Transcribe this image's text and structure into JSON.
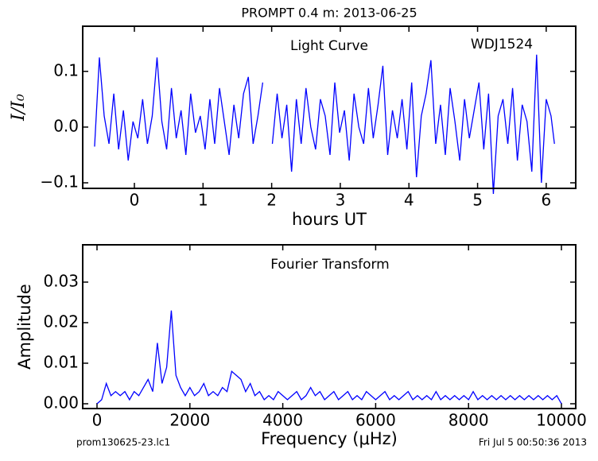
{
  "chart_data": [
    {
      "type": "line",
      "title": "PROMPT 0.4 m:  2013-06-25",
      "annotations": [
        "Light Curve",
        "WDJ1524"
      ],
      "xlabel": "hours UT",
      "ylabel": "I/I₀",
      "color": "#0000ff",
      "x": [
        -0.58,
        -0.51,
        -0.44,
        -0.37,
        -0.3,
        -0.23,
        -0.16,
        -0.09,
        -0.02,
        0.05,
        0.12,
        0.19,
        0.26,
        0.33,
        0.4,
        0.47,
        0.54,
        0.61,
        0.68,
        0.75,
        0.82,
        0.89,
        0.96,
        1.03,
        1.1,
        1.17,
        1.24,
        1.31,
        1.38,
        1.45,
        1.52,
        1.59,
        1.66,
        1.73,
        1.8,
        1.87,
        1.94,
        2.01,
        2.08,
        2.15,
        2.22,
        2.29,
        2.36,
        2.43,
        2.5,
        2.57,
        2.64,
        2.71,
        2.78,
        2.85,
        2.92,
        2.99,
        3.06,
        3.13,
        3.2,
        3.27,
        3.34,
        3.41,
        3.48,
        3.55,
        3.62,
        3.69,
        3.76,
        3.83,
        3.9,
        3.97,
        4.04,
        4.11,
        4.18,
        4.25,
        4.32,
        4.39,
        4.46,
        4.53,
        4.6,
        4.67,
        4.74,
        4.81,
        4.88,
        4.95,
        5.02,
        5.09,
        5.16,
        5.23,
        5.3,
        5.37,
        5.44,
        5.51,
        5.58,
        5.65,
        5.72,
        5.79,
        5.86,
        5.93,
        6.0,
        6.07,
        6.12
      ],
      "values": [
        -0.035,
        0.125,
        0.02,
        -0.03,
        0.06,
        -0.04,
        0.03,
        -0.06,
        0.01,
        -0.02,
        0.05,
        -0.03,
        0.02,
        0.125,
        0.01,
        -0.04,
        0.07,
        -0.02,
        0.03,
        -0.05,
        0.06,
        -0.01,
        0.02,
        -0.04,
        0.05,
        -0.03,
        0.07,
        0.01,
        -0.05,
        0.04,
        -0.02,
        0.06,
        0.09,
        -0.03,
        0.02,
        0.08,
        null,
        -0.03,
        0.06,
        -0.02,
        0.04,
        -0.08,
        0.05,
        -0.03,
        0.07,
        0.0,
        -0.04,
        0.05,
        0.02,
        -0.05,
        0.08,
        -0.01,
        0.03,
        -0.06,
        0.06,
        0.0,
        -0.03,
        0.07,
        -0.02,
        0.04,
        0.11,
        -0.05,
        0.03,
        -0.02,
        0.05,
        -0.04,
        0.08,
        -0.09,
        0.02,
        0.06,
        0.12,
        -0.03,
        0.04,
        -0.05,
        0.07,
        0.01,
        -0.06,
        0.05,
        -0.02,
        0.03,
        0.08,
        -0.04,
        0.06,
        -0.12,
        0.02,
        0.05,
        -0.03,
        0.07,
        -0.06,
        0.04,
        0.01,
        -0.08,
        0.13,
        -0.1,
        0.05,
        0.02,
        -0.03
      ],
      "xlim": [
        -0.753,
        6.43
      ],
      "ylim": [
        -0.11,
        0.181
      ],
      "xticks": [
        0,
        1,
        2,
        3,
        4,
        5,
        6
      ],
      "yticks": [
        {
          "value": -0.1,
          "label": "−0.1"
        },
        {
          "value": 0,
          "label": "0.0"
        },
        0.1
      ]
    },
    {
      "type": "line",
      "annotations": [
        "Fourier Transform"
      ],
      "xlabel": "Frequency (μHz)",
      "ylabel": "Amplitude",
      "color": "#0000ff",
      "x": [
        0,
        100,
        200,
        300,
        400,
        500,
        600,
        700,
        800,
        900,
        1000,
        1100,
        1200,
        1300,
        1400,
        1500,
        1600,
        1700,
        1800,
        1900,
        2000,
        2100,
        2200,
        2300,
        2400,
        2500,
        2600,
        2700,
        2800,
        2900,
        3000,
        3100,
        3200,
        3300,
        3400,
        3500,
        3600,
        3700,
        3800,
        3900,
        4000,
        4100,
        4200,
        4300,
        4400,
        4500,
        4600,
        4700,
        4800,
        4900,
        5000,
        5100,
        5200,
        5300,
        5400,
        5500,
        5600,
        5700,
        5800,
        5900,
        6000,
        6100,
        6200,
        6300,
        6400,
        6500,
        6600,
        6700,
        6800,
        6900,
        7000,
        7100,
        7200,
        7300,
        7400,
        7500,
        7600,
        7700,
        7800,
        7900,
        8000,
        8100,
        8200,
        8300,
        8400,
        8500,
        8600,
        8700,
        8800,
        8900,
        9000,
        9100,
        9200,
        9300,
        9400,
        9500,
        9600,
        9700,
        9800,
        9900,
        10000
      ],
      "values": [
        0.0,
        0.001,
        0.005,
        0.002,
        0.003,
        0.002,
        0.003,
        0.001,
        0.003,
        0.002,
        0.004,
        0.006,
        0.003,
        0.015,
        0.005,
        0.009,
        0.023,
        0.007,
        0.004,
        0.002,
        0.004,
        0.002,
        0.003,
        0.005,
        0.002,
        0.003,
        0.002,
        0.004,
        0.003,
        0.008,
        0.007,
        0.006,
        0.003,
        0.005,
        0.002,
        0.003,
        0.001,
        0.002,
        0.001,
        0.003,
        0.002,
        0.001,
        0.002,
        0.003,
        0.001,
        0.002,
        0.004,
        0.002,
        0.003,
        0.001,
        0.002,
        0.003,
        0.001,
        0.002,
        0.003,
        0.001,
        0.002,
        0.001,
        0.003,
        0.002,
        0.001,
        0.002,
        0.003,
        0.001,
        0.002,
        0.001,
        0.002,
        0.003,
        0.001,
        0.002,
        0.001,
        0.002,
        0.001,
        0.003,
        0.001,
        0.002,
        0.001,
        0.002,
        0.001,
        0.002,
        0.001,
        0.003,
        0.001,
        0.002,
        0.001,
        0.002,
        0.001,
        0.002,
        0.001,
        0.002,
        0.001,
        0.002,
        0.001,
        0.002,
        0.001,
        0.002,
        0.001,
        0.002,
        0.001,
        0.002,
        0.0
      ],
      "xlim": [
        -308,
        10308
      ],
      "ylim": [
        -0.00118,
        0.0392
      ],
      "xticks": [
        0,
        2000,
        4000,
        6000,
        8000,
        10000
      ],
      "yticks": [
        {
          "value": 0,
          "label": "0.00"
        },
        {
          "value": 0.01,
          "label": "0.01"
        },
        {
          "value": 0.02,
          "label": "0.02"
        },
        {
          "value": 0.03,
          "label": "0.03"
        }
      ]
    }
  ],
  "footer": {
    "left": "prom130625-23.lc1",
    "right": "Fri Jul  5 00:50:36 2013"
  }
}
